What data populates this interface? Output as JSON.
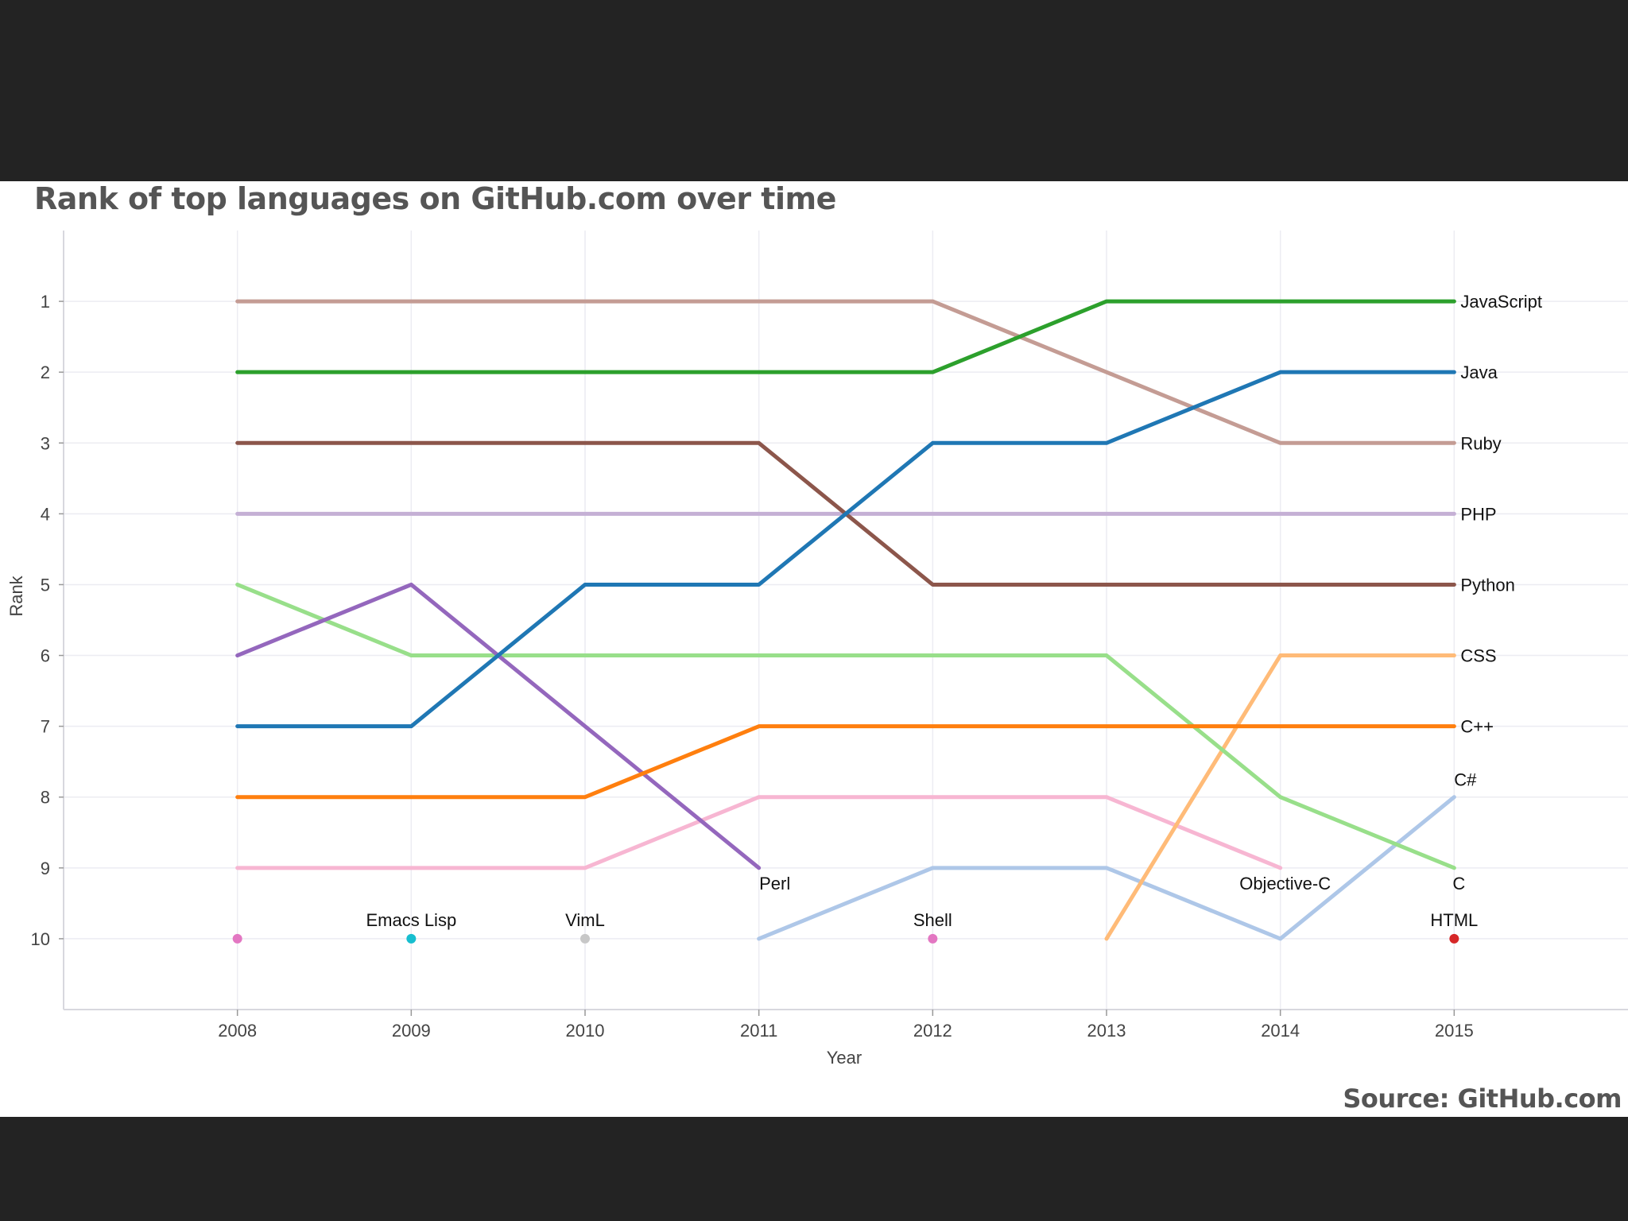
{
  "chart_data": {
    "type": "line",
    "title": "Rank of top languages on GitHub.com over time",
    "source": "Source: GitHub.com",
    "xlabel": "Year",
    "ylabel": "Rank",
    "x": [
      2008,
      2009,
      2010,
      2011,
      2012,
      2013,
      2014,
      2015
    ],
    "xlim": [
      2007,
      2016
    ],
    "ylim": [
      11,
      0
    ],
    "yticks": [
      1,
      2,
      3,
      4,
      5,
      6,
      7,
      8,
      9,
      10
    ],
    "grid": true,
    "series": [
      {
        "name": "PHP",
        "color": "#c5b0d5",
        "points": [
          [
            2008,
            4
          ],
          [
            2009,
            4
          ],
          [
            2010,
            4
          ],
          [
            2011,
            4
          ],
          [
            2012,
            4
          ],
          [
            2013,
            4
          ],
          [
            2014,
            4
          ],
          [
            2015,
            4
          ]
        ],
        "label": "PHP",
        "label_anchor": "end"
      },
      {
        "name": "Ruby",
        "color": "#c49c94",
        "points": [
          [
            2008,
            1
          ],
          [
            2009,
            1
          ],
          [
            2010,
            1
          ],
          [
            2011,
            1
          ],
          [
            2012,
            1
          ],
          [
            2013,
            2
          ],
          [
            2014,
            3
          ],
          [
            2015,
            3
          ]
        ],
        "label": "Ruby",
        "label_anchor": "end"
      },
      {
        "name": "Objective-C",
        "color": "#f7b6d2",
        "points": [
          [
            2008,
            9
          ],
          [
            2009,
            9
          ],
          [
            2010,
            9
          ],
          [
            2011,
            8
          ],
          [
            2012,
            8
          ],
          [
            2013,
            8
          ],
          [
            2014,
            9
          ]
        ],
        "label": "Objective-C",
        "label_anchor": "below"
      },
      {
        "name": "C#",
        "color": "#aec7e8",
        "points": [
          [
            2011,
            10
          ],
          [
            2012,
            9
          ],
          [
            2013,
            9
          ],
          [
            2014,
            10
          ],
          [
            2015,
            8
          ]
        ],
        "label": "C#",
        "label_anchor": "above"
      },
      {
        "name": "CSS",
        "color": "#ffbb78",
        "points": [
          [
            2013,
            10
          ],
          [
            2014,
            6
          ],
          [
            2015,
            6
          ]
        ],
        "label": "CSS",
        "label_anchor": "end"
      },
      {
        "name": "C",
        "color": "#98df8a",
        "points": [
          [
            2008,
            5
          ],
          [
            2009,
            6
          ],
          [
            2010,
            6
          ],
          [
            2011,
            6
          ],
          [
            2012,
            6
          ],
          [
            2013,
            6
          ],
          [
            2014,
            8
          ],
          [
            2015,
            9
          ]
        ],
        "label": "C",
        "label_anchor": "below"
      },
      {
        "name": "Perl",
        "color": "#9467bd",
        "points": [
          [
            2008,
            6
          ],
          [
            2009,
            5
          ],
          [
            2010,
            7
          ],
          [
            2011,
            9
          ]
        ],
        "label": "Perl",
        "label_anchor": "below"
      },
      {
        "name": "Python",
        "color": "#8c564b",
        "points": [
          [
            2008,
            3
          ],
          [
            2009,
            3
          ],
          [
            2010,
            3
          ],
          [
            2011,
            3
          ],
          [
            2012,
            5
          ],
          [
            2013,
            5
          ],
          [
            2014,
            5
          ],
          [
            2015,
            5
          ]
        ],
        "label": "Python",
        "label_anchor": "end"
      },
      {
        "name": "Java",
        "color": "#1f77b4",
        "points": [
          [
            2008,
            7
          ],
          [
            2009,
            7
          ],
          [
            2010,
            5
          ],
          [
            2011,
            5
          ],
          [
            2012,
            3
          ],
          [
            2013,
            3
          ],
          [
            2014,
            2
          ],
          [
            2015,
            2
          ]
        ],
        "label": "Java",
        "label_anchor": "end"
      },
      {
        "name": "C++",
        "color": "#ff7f0e",
        "points": [
          [
            2008,
            8
          ],
          [
            2009,
            8
          ],
          [
            2010,
            8
          ],
          [
            2011,
            7
          ],
          [
            2012,
            7
          ],
          [
            2013,
            7
          ],
          [
            2014,
            7
          ],
          [
            2015,
            7
          ]
        ],
        "label": "C++",
        "label_anchor": "end"
      },
      {
        "name": "JavaScript",
        "color": "#2ca02c",
        "points": [
          [
            2008,
            2
          ],
          [
            2009,
            2
          ],
          [
            2010,
            2
          ],
          [
            2011,
            2
          ],
          [
            2012,
            2
          ],
          [
            2013,
            1
          ],
          [
            2014,
            1
          ],
          [
            2015,
            1
          ]
        ],
        "label": "JavaScript",
        "label_anchor": "end"
      }
    ],
    "dots": [
      {
        "name": "",
        "year": 2008,
        "rank": 10,
        "color": "#e377c2",
        "label": ""
      },
      {
        "name": "Emacs Lisp",
        "year": 2009,
        "rank": 10,
        "color": "#17becf",
        "label": "Emacs Lisp"
      },
      {
        "name": "VimL",
        "year": 2010,
        "rank": 10,
        "color": "#c7c7c7",
        "label": "VimL"
      },
      {
        "name": "Shell",
        "year": 2012,
        "rank": 10,
        "color": "#e377c2",
        "label": "Shell"
      },
      {
        "name": "HTML",
        "year": 2015,
        "rank": 10,
        "color": "#d62728",
        "label": "HTML"
      }
    ]
  }
}
